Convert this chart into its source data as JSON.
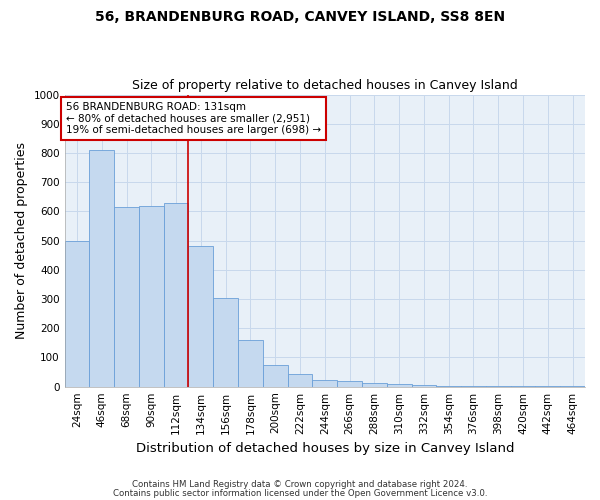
{
  "title": "56, BRANDENBURG ROAD, CANVEY ISLAND, SS8 8EN",
  "subtitle": "Size of property relative to detached houses in Canvey Island",
  "xlabel": "Distribution of detached houses by size in Canvey Island",
  "ylabel": "Number of detached properties",
  "footer_line1": "Contains HM Land Registry data © Crown copyright and database right 2024.",
  "footer_line2": "Contains public sector information licensed under the Open Government Licence v3.0.",
  "bin_labels": [
    "24sqm",
    "46sqm",
    "68sqm",
    "90sqm",
    "112sqm",
    "134sqm",
    "156sqm",
    "178sqm",
    "200sqm",
    "222sqm",
    "244sqm",
    "266sqm",
    "288sqm",
    "310sqm",
    "332sqm",
    "354sqm",
    "376sqm",
    "398sqm",
    "420sqm",
    "442sqm",
    "464sqm"
  ],
  "bar_values": [
    500,
    810,
    615,
    620,
    630,
    480,
    305,
    160,
    75,
    42,
    22,
    18,
    12,
    9,
    5,
    4,
    3,
    2,
    1,
    1,
    2
  ],
  "bar_color": "#c5d9ef",
  "bar_edge_color": "#6a9fd8",
  "vline_x": 5,
  "vline_color": "#cc0000",
  "annotation_text": "56 BRANDENBURG ROAD: 131sqm\n← 80% of detached houses are smaller (2,951)\n19% of semi-detached houses are larger (698) →",
  "annotation_box_color": "#cc0000",
  "ylim": [
    0,
    1000
  ],
  "yticks": [
    0,
    100,
    200,
    300,
    400,
    500,
    600,
    700,
    800,
    900,
    1000
  ],
  "grid_color": "#c8d8ec",
  "bg_color": "#e8f0f8",
  "title_fontsize": 10,
  "subtitle_fontsize": 9,
  "axis_label_fontsize": 9,
  "tick_fontsize": 7.5
}
